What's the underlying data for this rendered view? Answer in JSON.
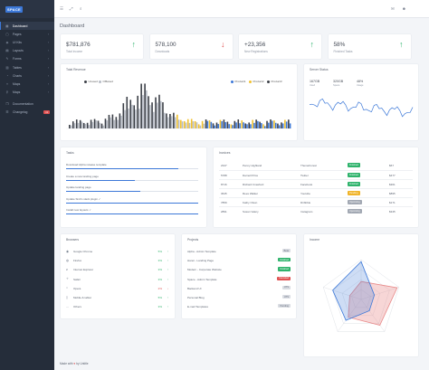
{
  "app": {
    "logo": "SPACE"
  },
  "sidebar": {
    "items": [
      {
        "label": "Dashboard",
        "icon": "dashboard-icon",
        "glyph": "▦",
        "active": true,
        "chevron": false
      },
      {
        "label": "Pages",
        "icon": "pages-icon",
        "glyph": "▢",
        "chevron": true
      },
      {
        "label": "UI Kits",
        "icon": "ui-kits-icon",
        "glyph": "◈",
        "chevron": true
      },
      {
        "label": "Layouts",
        "icon": "layouts-icon",
        "glyph": "▤",
        "chevron": true
      },
      {
        "label": "Forms",
        "icon": "forms-icon",
        "glyph": "✎",
        "chevron": true
      },
      {
        "label": "Tables",
        "icon": "tables-icon",
        "glyph": "▥",
        "chevron": true
      },
      {
        "label": "Charts",
        "icon": "charts-icon",
        "glyph": "◔",
        "chevron": true
      },
      {
        "label": "Maps",
        "icon": "maps-icon",
        "glyph": "⌖",
        "chevron": true
      },
      {
        "label": "Maps",
        "icon": "maps-icon",
        "glyph": "⚲",
        "chevron": true
      }
    ],
    "extra": [
      {
        "label": "Documentation",
        "icon": "documentation-icon",
        "glyph": "❐"
      },
      {
        "label": "Changelog",
        "icon": "changelog-icon",
        "glyph": "☰",
        "badge": "v1"
      }
    ]
  },
  "header": {
    "title": "Dashboard"
  },
  "stats": [
    {
      "value": "$781,876",
      "label": "Total Income",
      "arrow": "↑",
      "arrow_color": "#2fb36c"
    },
    {
      "value": "578,100",
      "label": "Downloads",
      "arrow": "↓",
      "arrow_color": "#e05252"
    },
    {
      "value": "+23,356",
      "label": "New Registrations",
      "arrow": "↑",
      "arrow_color": "#2fb36c"
    },
    {
      "value": "58%",
      "label": "Finished Tasks",
      "arrow": "↑",
      "arrow_color": "#2fb36c"
    }
  ],
  "revenue": {
    "title": "Total Revenue",
    "legend_left": [
      {
        "name": "Unused",
        "color": "#3b3f47"
      },
      {
        "name": "Offlaned",
        "color": "#b7bcc6"
      }
    ],
    "legend_right": [
      {
        "name": "Product1",
        "color": "#3c78d8"
      },
      {
        "name": "Product2",
        "color": "#f2c230"
      },
      {
        "name": "Product3",
        "color": "#3b3f47"
      }
    ]
  },
  "server": {
    "title": "Server Status",
    "stats": [
      {
        "value": "167GB",
        "label": "Used"
      },
      {
        "value": "320GB",
        "label": "Space"
      },
      {
        "value": "48%",
        "label": "Usage"
      }
    ]
  },
  "tasks": {
    "title": "Tasks",
    "items": [
      {
        "label": "Download Alpha release template",
        "progress": 0.85
      },
      {
        "label": "Create a new landing page",
        "progress": 0.52
      },
      {
        "label": "Update landing page",
        "progress": 0.56
      },
      {
        "label": "Update Sinti's slack plugin ✓",
        "progress": 1.0
      },
      {
        "label": "Install new layouts ✓",
        "progress": 1.0
      }
    ]
  },
  "invoices": {
    "title": "Invoices",
    "rows": [
      {
        "id": "2347",
        "name": "Penny Highland",
        "company": "ThemeForest",
        "status": "Finished",
        "status_color": "#2fb36c",
        "amount": "$67"
      },
      {
        "id": "5788",
        "name": "Darnell Price",
        "company": "Twitter",
        "status": "Finished",
        "status_color": "#2fb36c",
        "amount": "$477"
      },
      {
        "id": "8716",
        "name": "Richard Crawford",
        "company": "Facebook",
        "status": "Finished",
        "status_color": "#2fb36c",
        "amount": "$361"
      },
      {
        "id": "3645",
        "name": "Rees Walker",
        "company": "Youtube",
        "status": "Pending",
        "status_color": "#f0b429",
        "amount": "$895"
      },
      {
        "id": "7859",
        "name": "Kathy Olson",
        "company": "Dribbble",
        "status": "Upcoming",
        "status_color": "#a2a8b3",
        "amount": "$171"
      },
      {
        "id": "2891",
        "name": "Susan Valery",
        "company": "Instagram",
        "status": "Upcoming",
        "status_color": "#a2a8b3",
        "amount": "$345"
      }
    ]
  },
  "browsers": {
    "title": "Browsers",
    "rows": [
      {
        "name": "Google Chrome",
        "icon": "chrome-icon",
        "glyph": "◉",
        "pct": "5%",
        "arrow": "↑",
        "color": "#2fb36c"
      },
      {
        "name": "Firefox",
        "icon": "firefox-icon",
        "glyph": "◍",
        "pct": "3%",
        "arrow": "↑",
        "color": "#2fb36c"
      },
      {
        "name": "Internet Explorer",
        "icon": "internet-explorer-icon",
        "glyph": "ℯ",
        "pct": "3%",
        "arrow": "↑",
        "color": "#2fb36c"
      },
      {
        "name": "Safari",
        "icon": "safari-icon",
        "glyph": "✧",
        "pct": "3%",
        "arrow": "↑",
        "color": "#2fb36c"
      },
      {
        "name": "Opera",
        "icon": "opera-icon",
        "glyph": "○",
        "pct": "2%",
        "arrow": "↓",
        "color": "#e05252"
      },
      {
        "name": "Mobile & tablet",
        "icon": "mobile-icon",
        "glyph": "▯",
        "pct": "5%",
        "arrow": "↑",
        "color": "#2fb36c"
      },
      {
        "name": "Others",
        "icon": "others-icon",
        "glyph": "…",
        "pct": "3%",
        "arrow": "↑",
        "color": "#2fb36c"
      }
    ]
  },
  "projects": {
    "title": "Projects",
    "rows": [
      {
        "name": "Alpha - Admin Template",
        "status": "Beta",
        "color": "#d9dce2",
        "text": "#6a7180"
      },
      {
        "name": "Hanoi - Landing Page",
        "status": "Finished",
        "color": "#2fb36c",
        "text": "#ffffff"
      },
      {
        "name": "Modern - Corporate Website",
        "status": "Finished",
        "color": "#2fb36c",
        "text": "#ffffff"
      },
      {
        "name": "Space - Admin Template",
        "status": "Canceled",
        "color": "#e05252",
        "text": "#ffffff"
      },
      {
        "name": "Backend UI",
        "status": "UTS",
        "color": "#d9dce2",
        "text": "#6a7180"
      },
      {
        "name": "Personal Blog",
        "status": "UTS",
        "color": "#d9dce2",
        "text": "#6a7180"
      },
      {
        "name": "E-mail Templates",
        "status": "Pending",
        "color": "#d9dce2",
        "text": "#6a7180"
      }
    ]
  },
  "income": {
    "title": "Income"
  },
  "footer": {
    "prefix": "Made with",
    "suffix": "by Untitle"
  }
}
